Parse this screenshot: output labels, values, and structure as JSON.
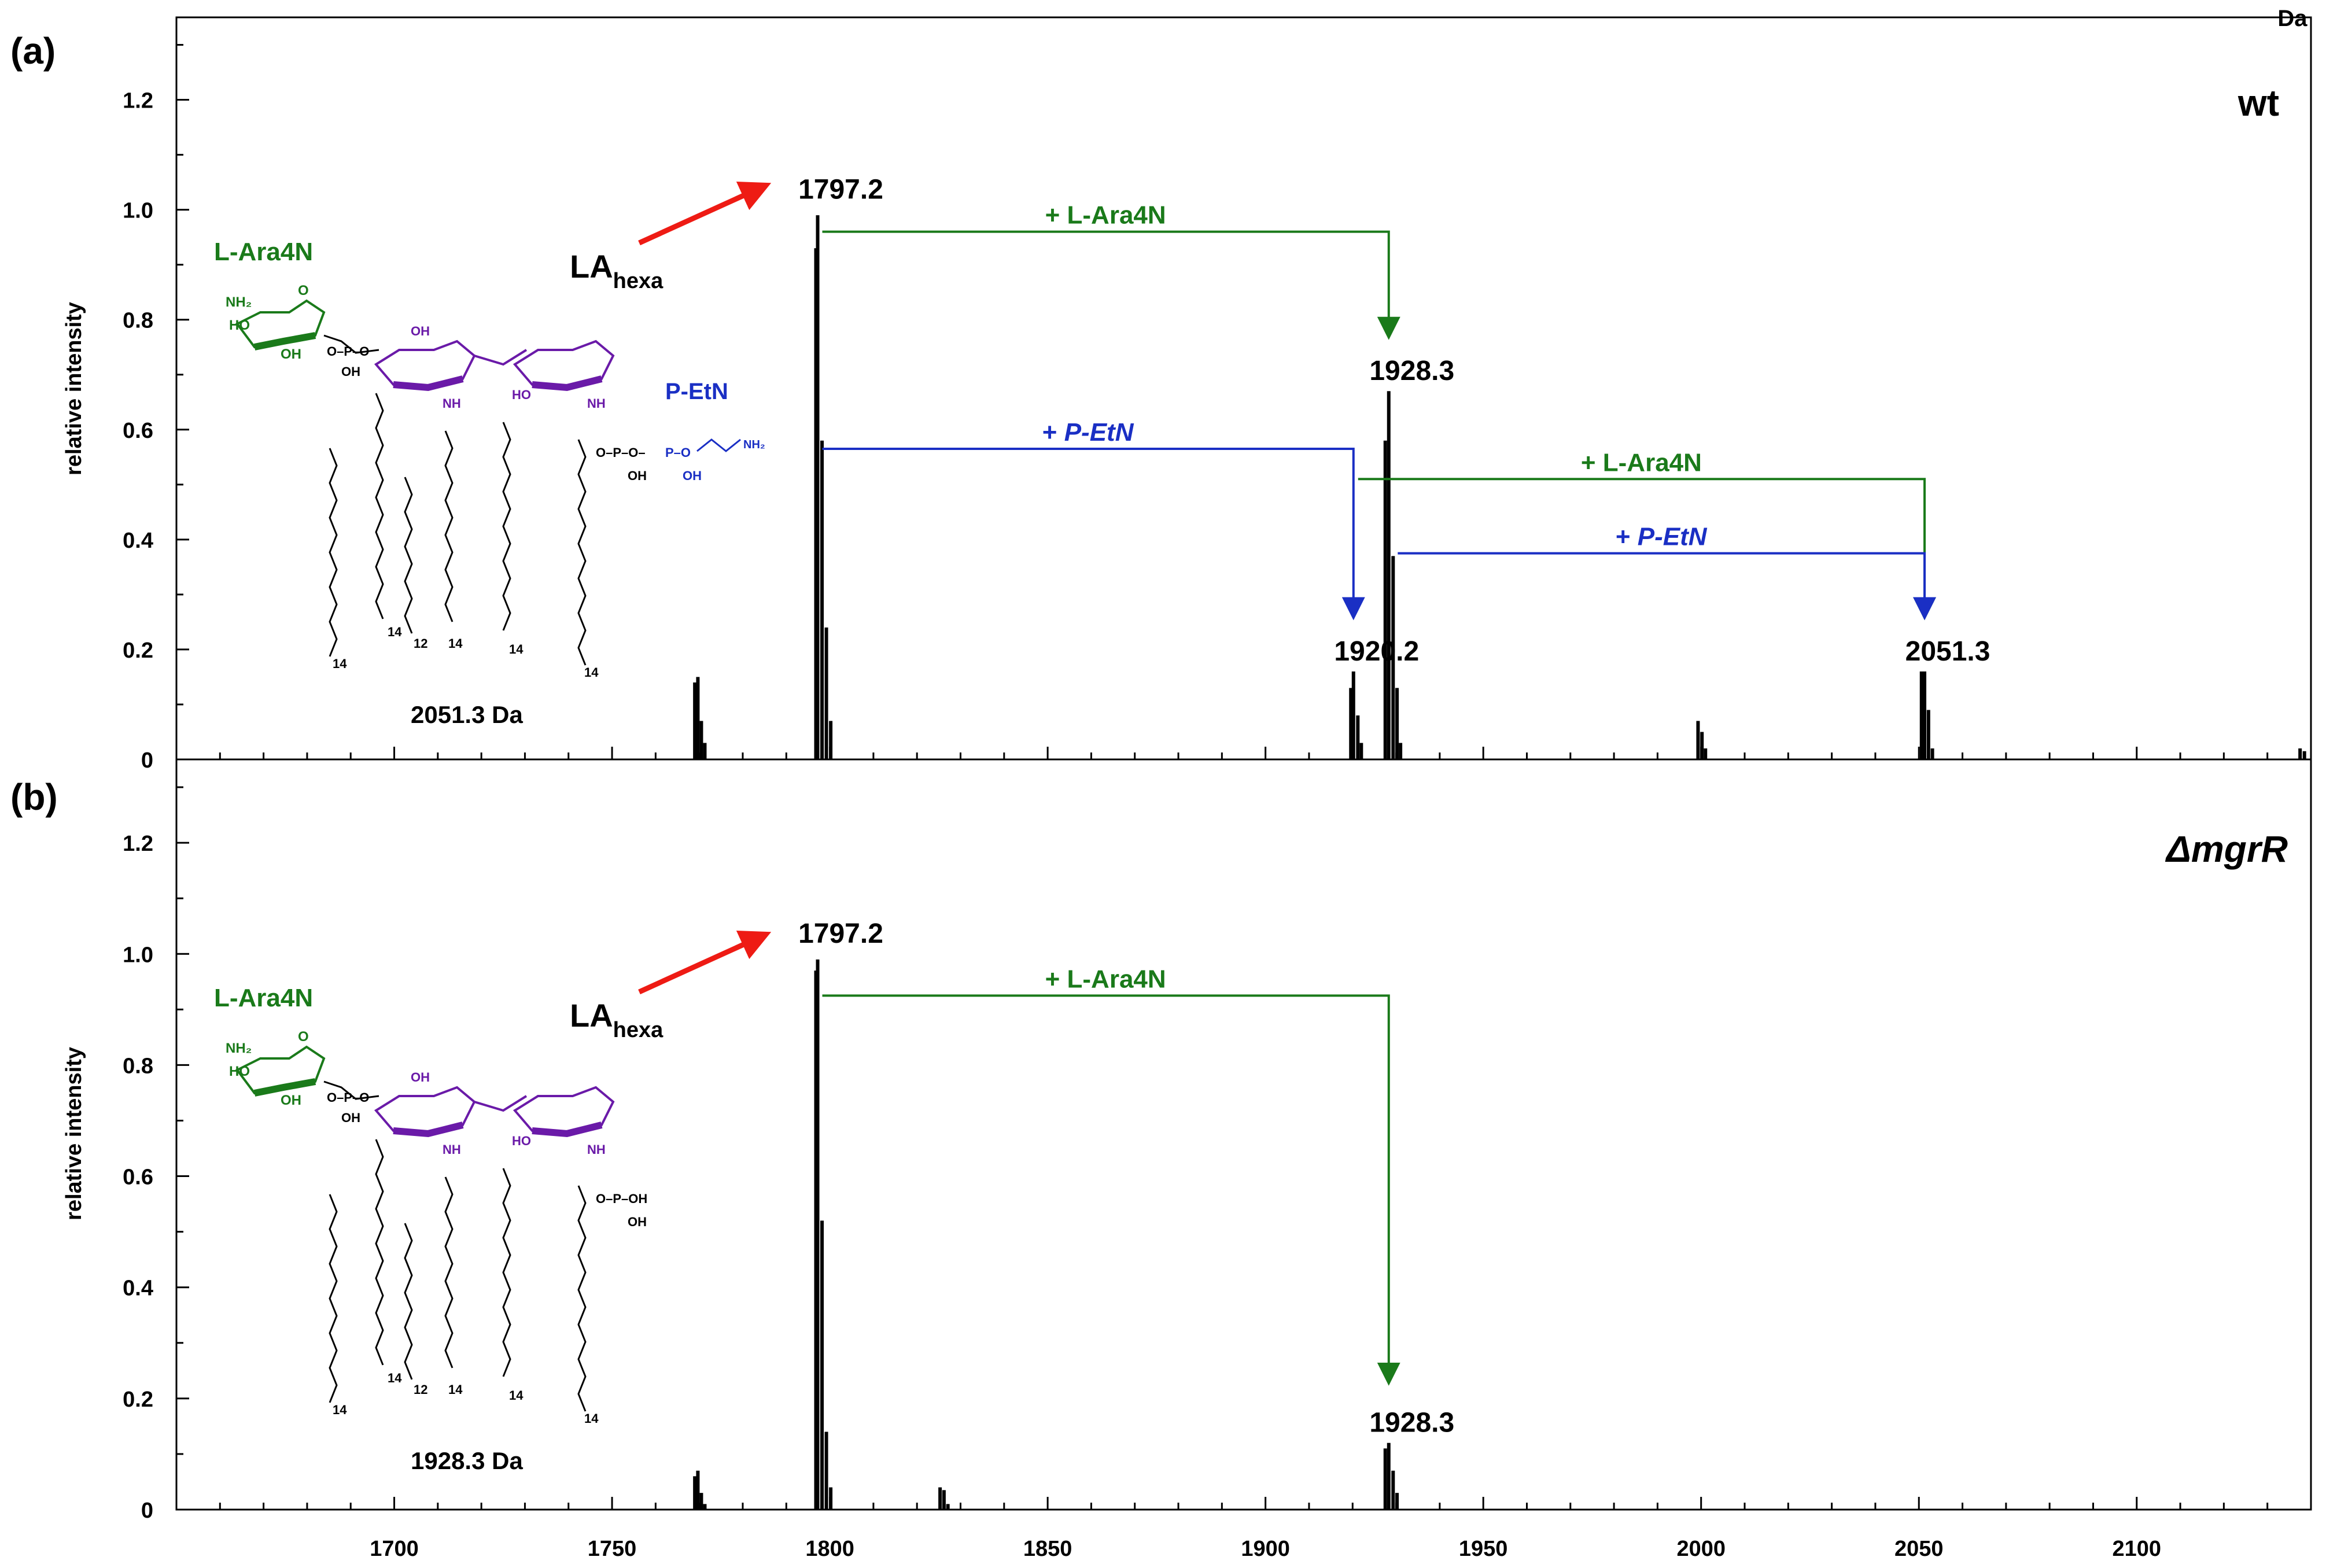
{
  "chart_data": [
    {
      "type": "bar",
      "panel_label": "(a)",
      "strain": "wt",
      "ylabel": "relative intensity",
      "xlabel": "",
      "x_unit_label": "Da",
      "xlim": [
        1650,
        2140
      ],
      "ylim": [
        0,
        1.35
      ],
      "yticks": [
        "0",
        "0.2",
        "0.4",
        "0.6",
        "0.8",
        "1.0",
        "1.2"
      ],
      "ytick_values": [
        0,
        0.2,
        0.4,
        0.6,
        0.8,
        1.0,
        1.2
      ],
      "peaks": [
        {
          "x": 1769.0,
          "y": 0.14
        },
        {
          "x": 1769.7,
          "y": 0.15
        },
        {
          "x": 1770.5,
          "y": 0.07
        },
        {
          "x": 1771.3,
          "y": 0.03
        },
        {
          "x": 1796.8,
          "y": 0.93
        },
        {
          "x": 1797.2,
          "y": 0.99
        },
        {
          "x": 1798.2,
          "y": 0.58
        },
        {
          "x": 1799.2,
          "y": 0.24
        },
        {
          "x": 1800.2,
          "y": 0.07
        },
        {
          "x": 1919.6,
          "y": 0.13
        },
        {
          "x": 1920.2,
          "y": 0.16
        },
        {
          "x": 1921.2,
          "y": 0.08
        },
        {
          "x": 1922.0,
          "y": 0.03
        },
        {
          "x": 1927.5,
          "y": 0.58
        },
        {
          "x": 1928.3,
          "y": 0.67
        },
        {
          "x": 1929.3,
          "y": 0.37
        },
        {
          "x": 1930.2,
          "y": 0.13
        },
        {
          "x": 1931.0,
          "y": 0.03
        },
        {
          "x": 1999.3,
          "y": 0.07
        },
        {
          "x": 2000.2,
          "y": 0.05
        },
        {
          "x": 2001.0,
          "y": 0.02
        },
        {
          "x": 2050.6,
          "y": 0.16
        },
        {
          "x": 2051.3,
          "y": 0.16
        },
        {
          "x": 2052.2,
          "y": 0.09
        },
        {
          "x": 2053.1,
          "y": 0.02
        },
        {
          "x": 2137.5,
          "y": 0.02
        },
        {
          "x": 2138.5,
          "y": 0.015
        }
      ],
      "peak_labels": [
        {
          "x": 1797.2,
          "y": 1.02,
          "text": "1797.2"
        },
        {
          "x": 1928.3,
          "y": 0.69,
          "text": "1928.3"
        },
        {
          "x": 1920.2,
          "y": 0.18,
          "text": "1920.2"
        },
        {
          "x": 2051.3,
          "y": 0.18,
          "text": "2051.3"
        }
      ],
      "annotations": [
        {
          "kind": "green",
          "text_prefix": "+ ",
          "text_main": "L-Ara4N",
          "from_x": 1797.2,
          "to_x": 1928.3,
          "bar_y": 0.96,
          "arrow_end_y": 0.74
        },
        {
          "kind": "blue",
          "text_prefix": "+ ",
          "text_main": "P-EtN",
          "from_x": 1797.2,
          "to_x": 1920.2,
          "bar_y": 0.565,
          "arrow_end_y": 0.23
        },
        {
          "kind": "green",
          "text_prefix": "+ ",
          "text_main": "L-Ara4N",
          "from_x": 1920.2,
          "to_x": 2051.3,
          "bar_y": 0.51,
          "arrow_end_y": 0.23
        },
        {
          "kind": "blue",
          "text_prefix": "+ ",
          "text_main": "P-EtN",
          "from_x": 1929.3,
          "to_x": 2051.3,
          "bar_y": 0.375,
          "arrow_end_y": 0.23
        }
      ],
      "red_arrow_label": "LA",
      "red_arrow_sub": "hexa",
      "structure": {
        "sugar_label": "L-Ara4N",
        "group_label": "P-EtN",
        "mass_label": "2051.3 Da",
        "chain_numbers": [
          "14",
          "14",
          "12",
          "14",
          "14",
          "14"
        ]
      },
      "colors": {
        "bars": "#000000",
        "ara4n": "#1a7a1a",
        "petn": "#1a2fc4",
        "red_arrow": "#ee1b14",
        "lipid_a_core": "#6a1aa8"
      }
    },
    {
      "type": "bar",
      "panel_label": "(b)",
      "strain": "ΔmgrR",
      "ylabel": "relative intensity",
      "xlabel": "",
      "x_unit_label": "Da",
      "xlim": [
        1650,
        2140
      ],
      "ylim": [
        0,
        1.35
      ],
      "yticks": [
        "0",
        "0.2",
        "0.4",
        "0.6",
        "0.8",
        "1.0",
        "1.2"
      ],
      "ytick_values": [
        0,
        0.2,
        0.4,
        0.6,
        0.8,
        1.0,
        1.2
      ],
      "xticks": [
        "1700",
        "1750",
        "1800",
        "1850",
        "1900",
        "1950",
        "2000",
        "2050",
        "2100"
      ],
      "xtick_values": [
        1700,
        1750,
        1800,
        1850,
        1900,
        1950,
        2000,
        2050,
        2100
      ],
      "peaks": [
        {
          "x": 1769.0,
          "y": 0.06
        },
        {
          "x": 1769.7,
          "y": 0.07
        },
        {
          "x": 1770.5,
          "y": 0.03
        },
        {
          "x": 1771.3,
          "y": 0.01
        },
        {
          "x": 1796.8,
          "y": 0.97
        },
        {
          "x": 1797.2,
          "y": 0.99
        },
        {
          "x": 1798.2,
          "y": 0.52
        },
        {
          "x": 1799.2,
          "y": 0.14
        },
        {
          "x": 1800.2,
          "y": 0.04
        },
        {
          "x": 1825.3,
          "y": 0.04
        },
        {
          "x": 1826.2,
          "y": 0.035
        },
        {
          "x": 1827.1,
          "y": 0.01
        },
        {
          "x": 1927.5,
          "y": 0.11
        },
        {
          "x": 1928.3,
          "y": 0.12
        },
        {
          "x": 1929.3,
          "y": 0.07
        },
        {
          "x": 1930.2,
          "y": 0.03
        }
      ],
      "peak_labels": [
        {
          "x": 1797.2,
          "y": 1.02,
          "text": "1797.2"
        },
        {
          "x": 1928.3,
          "y": 0.14,
          "text": "1928.3"
        }
      ],
      "annotations": [
        {
          "kind": "green",
          "text_prefix": "+ ",
          "text_main": "L-Ara4N",
          "from_x": 1797.2,
          "to_x": 1928.3,
          "bar_y": 0.925,
          "arrow_end_y": 0.2
        }
      ],
      "red_arrow_label": "LA",
      "red_arrow_sub": "hexa",
      "structure": {
        "sugar_label": "L-Ara4N",
        "group_label": "",
        "mass_label": "1928.3 Da",
        "chain_numbers": [
          "14",
          "14",
          "12",
          "14",
          "14",
          "14"
        ]
      },
      "colors": {
        "bars": "#000000",
        "ara4n": "#1a7a1a",
        "petn": "#1a2fc4",
        "red_arrow": "#ee1b14",
        "lipid_a_core": "#6a1aa8"
      }
    }
  ]
}
